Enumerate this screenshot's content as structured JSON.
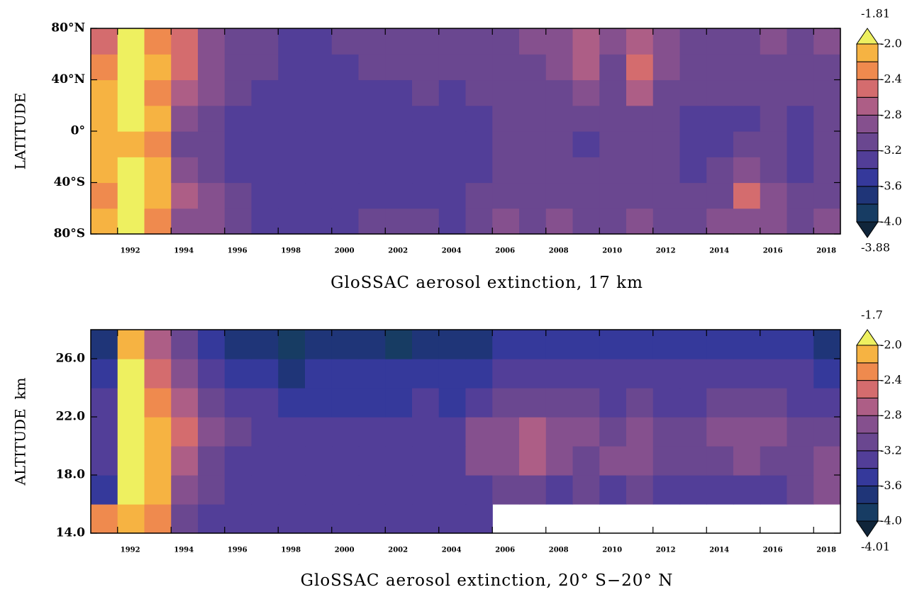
{
  "chart_data": [
    {
      "type": "heatmap",
      "title": "GloSSAC aerosol extinction, 17 km",
      "ylabel": "LATITUDE",
      "x_bins": [
        1991,
        1992,
        1993,
        1994,
        1995,
        1996,
        1997,
        1998,
        1999,
        2000,
        2001,
        2002,
        2003,
        2004,
        2005,
        2006,
        2007,
        2008,
        2009,
        2010,
        2011,
        2012,
        2013,
        2014,
        2015,
        2016,
        2017,
        2018,
        2019
      ],
      "y_bins": [
        -80,
        -60,
        -40,
        -20,
        0,
        20,
        40,
        60,
        80
      ],
      "values": [
        [
          -2.2,
          -2.0,
          -2.3,
          -2.9,
          -3.0,
          -3.2,
          -3.3,
          -3.3,
          -3.3,
          -3.3,
          -3.2,
          -3.2,
          -3.2,
          -3.3,
          -3.2,
          -3.0,
          -3.1,
          -3.0,
          -3.1,
          -3.1,
          -3.0,
          -3.1,
          -3.1,
          -3.0,
          -2.9,
          -3.0,
          -3.1,
          -3.0
        ],
        [
          -2.3,
          -2.0,
          -2.1,
          -2.8,
          -2.9,
          -3.2,
          -3.3,
          -3.4,
          -3.4,
          -3.4,
          -3.3,
          -3.3,
          -3.3,
          -3.3,
          -3.2,
          -3.1,
          -3.1,
          -3.1,
          -3.2,
          -3.1,
          -3.1,
          -3.2,
          -3.2,
          -3.1,
          -2.6,
          -3.0,
          -3.2,
          -3.1
        ],
        [
          -2.2,
          -2.0,
          -2.2,
          -3.0,
          -3.1,
          -3.3,
          -3.3,
          -3.4,
          -3.4,
          -3.4,
          -3.3,
          -3.3,
          -3.4,
          -3.4,
          -3.3,
          -3.2,
          -3.2,
          -3.1,
          -3.2,
          -3.2,
          -3.2,
          -3.2,
          -3.3,
          -3.2,
          -2.9,
          -3.1,
          -3.3,
          -3.2
        ],
        [
          -2.2,
          -2.1,
          -2.3,
          -3.1,
          -3.2,
          -3.3,
          -3.4,
          -3.4,
          -3.4,
          -3.4,
          -3.4,
          -3.4,
          -3.4,
          -3.4,
          -3.3,
          -3.2,
          -3.2,
          -3.2,
          -3.3,
          -3.2,
          -3.2,
          -3.2,
          -3.3,
          -3.3,
          -3.2,
          -3.2,
          -3.3,
          -3.1
        ],
        [
          -2.1,
          -2.0,
          -2.2,
          -3.0,
          -3.1,
          -3.3,
          -3.3,
          -3.4,
          -3.3,
          -3.4,
          -3.3,
          -3.3,
          -3.3,
          -3.4,
          -3.3,
          -3.2,
          -3.2,
          -3.2,
          -3.2,
          -3.2,
          -3.2,
          -3.2,
          -3.3,
          -3.3,
          -3.3,
          -3.2,
          -3.3,
          -3.1
        ],
        [
          -2.1,
          -2.0,
          -2.3,
          -2.8,
          -3.0,
          -3.2,
          -3.3,
          -3.3,
          -3.3,
          -3.3,
          -3.3,
          -3.3,
          -3.2,
          -3.3,
          -3.2,
          -3.1,
          -3.1,
          -3.1,
          -3.0,
          -3.1,
          -2.8,
          -3.1,
          -3.2,
          -3.2,
          -3.2,
          -3.1,
          -3.2,
          -3.1
        ],
        [
          -2.3,
          -1.95,
          -2.2,
          -2.6,
          -2.9,
          -3.2,
          -3.2,
          -3.3,
          -3.3,
          -3.3,
          -3.2,
          -3.2,
          -3.2,
          -3.2,
          -3.2,
          -3.1,
          -3.1,
          -3.0,
          -2.8,
          -3.1,
          -2.5,
          -3.0,
          -3.1,
          -3.1,
          -3.1,
          -3.1,
          -3.1,
          -3.1
        ],
        [
          -2.5,
          -2.0,
          -2.3,
          -2.6,
          -2.9,
          -3.1,
          -3.2,
          -3.3,
          -3.3,
          -3.2,
          -3.2,
          -3.2,
          -3.1,
          -3.2,
          -3.1,
          -3.1,
          -3.0,
          -3.0,
          -2.7,
          -3.0,
          -2.7,
          -3.0,
          -3.1,
          -3.1,
          -3.1,
          -3.0,
          -3.1,
          -3.0
        ]
      ],
      "xlim": [
        1991,
        2019
      ],
      "xticks": [
        1992,
        1994,
        1996,
        1998,
        2000,
        2002,
        2004,
        2006,
        2008,
        2010,
        2012,
        2014,
        2016,
        2018
      ],
      "ylim": [
        -80,
        80
      ],
      "yticks": [
        {
          "value": 80,
          "label": "80°N"
        },
        {
          "value": 40,
          "label": "40°N"
        },
        {
          "value": 0,
          "label": "0°"
        },
        {
          "value": -40,
          "label": "40°S"
        },
        {
          "value": -80,
          "label": "80°S"
        }
      ],
      "levels": [
        -4.0,
        -3.8,
        -3.6,
        -3.4,
        -3.2,
        -3.0,
        -2.8,
        -2.6,
        -2.4,
        -2.2,
        -2.0
      ],
      "colors": [
        "#10253a",
        "#173c63",
        "#1f3578",
        "#35399b",
        "#523e98",
        "#6a4790",
        "#85508e",
        "#ad5e86",
        "#d46c6e",
        "#ef8a4e",
        "#f6b342",
        "#eef060"
      ],
      "cbticks": [
        {
          "value": -2.0,
          "label": "-2.0"
        },
        -2.4,
        -2.8,
        -3.2,
        -3.6,
        {
          "value": -4.0,
          "label": "-4.0"
        }
      ],
      "colorbar_max": -1.81,
      "colorbar_min": -3.88
    },
    {
      "type": "heatmap",
      "title": "GloSSAC aerosol extinction, 20° S−20° N",
      "ylabel": "ALTITUDE  km",
      "x_bins": [
        1991,
        1992,
        1993,
        1994,
        1995,
        1996,
        1997,
        1998,
        1999,
        2000,
        2001,
        2002,
        2003,
        2004,
        2005,
        2006,
        2007,
        2008,
        2009,
        2010,
        2011,
        2012,
        2013,
        2014,
        2015,
        2016,
        2017,
        2018,
        2019
      ],
      "y_bins": [
        14,
        16,
        18,
        20,
        22,
        24,
        26,
        28
      ],
      "values": [
        [
          -2.4,
          -2.2,
          -2.4,
          -3.1,
          -3.3,
          -3.3,
          -3.3,
          -3.3,
          -3.3,
          -3.3,
          -3.3,
          -3.3,
          -3.3,
          -3.3,
          -3.4,
          null,
          null,
          null,
          null,
          null,
          null,
          null,
          null,
          null,
          null,
          null,
          null,
          null
        ],
        [
          -3.5,
          -2.0,
          -2.2,
          -3.0,
          -3.2,
          -3.3,
          -3.3,
          -3.3,
          -3.3,
          -3.3,
          -3.3,
          -3.3,
          -3.3,
          -3.3,
          -3.3,
          -3.2,
          -3.2,
          -3.3,
          -3.2,
          -3.3,
          -3.2,
          -3.3,
          -3.3,
          -3.3,
          -3.3,
          -3.3,
          -3.2,
          -3.0
        ],
        [
          -3.4,
          -2.0,
          -2.1,
          -2.8,
          -3.1,
          -3.3,
          -3.3,
          -3.3,
          -3.3,
          -3.3,
          -3.3,
          -3.3,
          -3.3,
          -3.3,
          -2.9,
          -3.0,
          -2.8,
          -3.0,
          -3.1,
          -3.0,
          -2.9,
          -3.1,
          -3.2,
          -3.1,
          -3.0,
          -3.1,
          -3.2,
          -2.9
        ],
        [
          -3.3,
          -2.0,
          -2.1,
          -2.6,
          -2.9,
          -3.2,
          -3.3,
          -3.3,
          -3.3,
          -3.4,
          -3.3,
          -3.3,
          -3.3,
          -3.3,
          -3.0,
          -3.0,
          -2.8,
          -3.0,
          -3.0,
          -3.1,
          -3.0,
          -3.1,
          -3.2,
          -3.0,
          -2.9,
          -3.0,
          -3.2,
          -3.1
        ],
        [
          -3.4,
          -2.0,
          -2.3,
          -2.8,
          -3.1,
          -3.3,
          -3.4,
          -3.6,
          -3.6,
          -3.6,
          -3.6,
          -3.5,
          -3.4,
          -3.5,
          -3.3,
          -3.1,
          -3.1,
          -3.2,
          -3.2,
          -3.3,
          -3.2,
          -3.3,
          -3.3,
          -3.2,
          -3.1,
          -3.2,
          -3.3,
          -3.3
        ],
        [
          -3.5,
          -2.0,
          -2.6,
          -3.0,
          -3.3,
          -3.6,
          -3.6,
          -3.7,
          -3.6,
          -3.6,
          -3.6,
          -3.6,
          -3.6,
          -3.6,
          -3.5,
          -3.3,
          -3.3,
          -3.3,
          -3.3,
          -3.3,
          -3.3,
          -3.3,
          -3.4,
          -3.3,
          -3.3,
          -3.4,
          -3.4,
          -3.5
        ],
        [
          -3.7,
          -2.1,
          -2.8,
          -3.2,
          -3.6,
          -3.7,
          -3.8,
          -3.9,
          -3.8,
          -3.8,
          -3.8,
          -3.9,
          -3.8,
          -3.8,
          -3.7,
          -3.5,
          -3.6,
          -3.6,
          -3.6,
          -3.6,
          -3.6,
          -3.6,
          -3.6,
          -3.6,
          -3.6,
          -3.6,
          -3.6,
          -3.8
        ]
      ],
      "xlim": [
        1991,
        2019
      ],
      "xticks": [
        1992,
        1994,
        1996,
        1998,
        2000,
        2002,
        2004,
        2006,
        2008,
        2010,
        2012,
        2014,
        2016,
        2018
      ],
      "ylim": [
        14,
        28
      ],
      "yticks": [
        {
          "value": 26,
          "label": "26.0"
        },
        {
          "value": 22,
          "label": "22.0"
        },
        {
          "value": 18,
          "label": "18.0"
        },
        {
          "value": 14,
          "label": "14.0"
        }
      ],
      "levels": [
        -4.0,
        -3.8,
        -3.6,
        -3.4,
        -3.2,
        -3.0,
        -2.8,
        -2.6,
        -2.4,
        -2.2,
        -2.0
      ],
      "colors": [
        "#10253a",
        "#173c63",
        "#1f3578",
        "#35399b",
        "#523e98",
        "#6a4790",
        "#85508e",
        "#ad5e86",
        "#d46c6e",
        "#ef8a4e",
        "#f6b342",
        "#eef060"
      ],
      "cbticks": [
        {
          "value": -2.0,
          "label": "-2.0"
        },
        -2.4,
        -2.8,
        -3.2,
        -3.6,
        {
          "value": -4.0,
          "label": "-4.0"
        }
      ],
      "colorbar_max": -1.7,
      "colorbar_min": -4.01
    }
  ]
}
